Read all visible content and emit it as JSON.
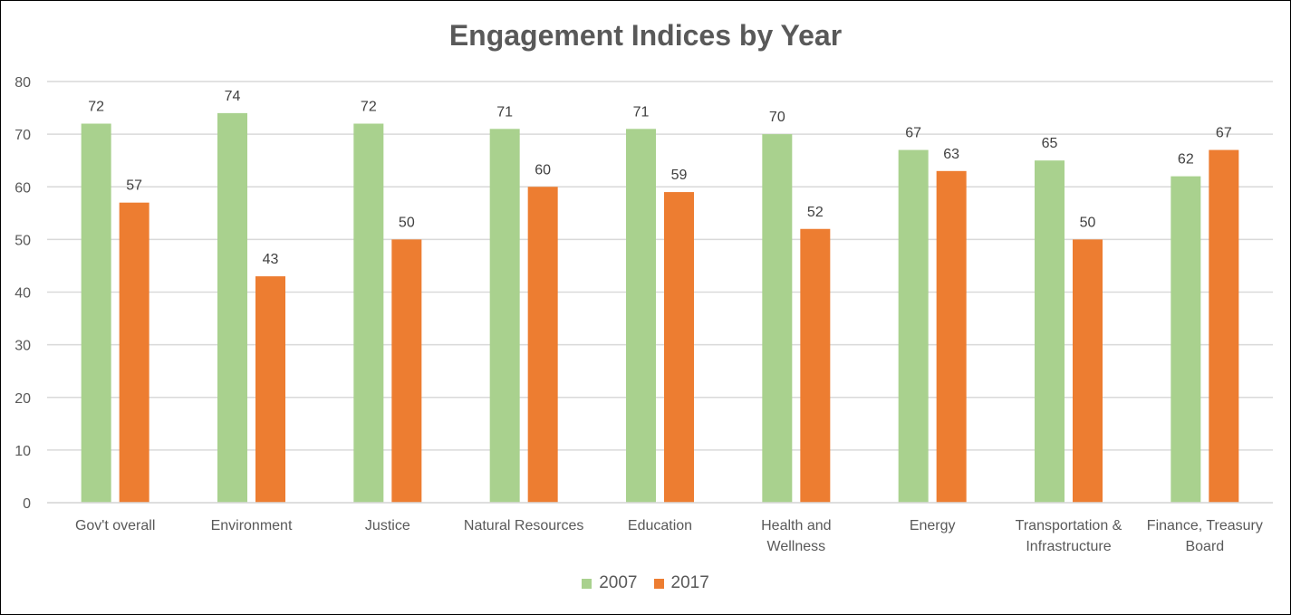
{
  "chart_data": {
    "type": "bar",
    "title": "Engagement Indices by Year",
    "xlabel": "",
    "ylabel": "",
    "ylim": [
      0,
      80
    ],
    "yticks": [
      0,
      10,
      20,
      30,
      40,
      50,
      60,
      70,
      80
    ],
    "grid": true,
    "legend": "bottom",
    "categories": [
      [
        "Gov't overall"
      ],
      [
        "Environment"
      ],
      [
        "Justice"
      ],
      [
        "Natural Resources"
      ],
      [
        "Education"
      ],
      [
        "Health and",
        "Wellness"
      ],
      [
        "Energy"
      ],
      [
        "Transportation &",
        "Infrastructure"
      ],
      [
        "Finance, Treasury",
        "Board"
      ]
    ],
    "series": [
      {
        "name": "2007",
        "color": "#A9D18E",
        "values": [
          72,
          74,
          72,
          71,
          71,
          70,
          67,
          65,
          62
        ]
      },
      {
        "name": "2017",
        "color": "#ED7D31",
        "values": [
          57,
          43,
          50,
          60,
          59,
          52,
          63,
          50,
          67
        ]
      }
    ]
  }
}
